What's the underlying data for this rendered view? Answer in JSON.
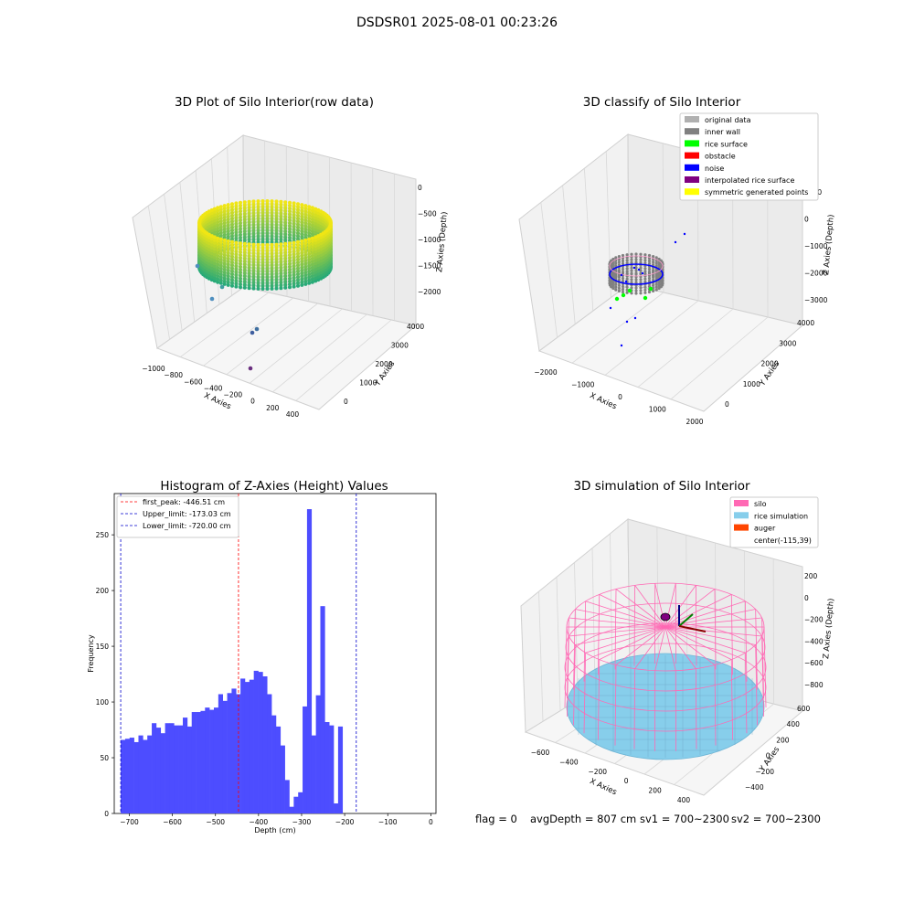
{
  "figure": {
    "suptitle": "DSDSR01 2025-08-01 00:23:26",
    "footer": {
      "flag": "flag = 0",
      "avg_depth": "avgDepth = 807 cm",
      "sv1": "sv1 = 700~2300",
      "sv2": "sv2 = 700~2300"
    }
  },
  "panels": {
    "raw": {
      "title": "3D Plot of Silo Interior(row data)",
      "xlabel": "X Axies",
      "ylabel": "Y Axies",
      "zlabel": "Z Axies (Depth)",
      "x_ticks": [
        "−1000",
        "−800",
        "−600",
        "−400",
        "−200",
        "0",
        "200",
        "400"
      ],
      "y_ticks": [
        "0",
        "1000",
        "2000",
        "3000",
        "4000"
      ],
      "z_ticks": [
        "0",
        "−500",
        "−1000",
        "−1500",
        "−2000"
      ]
    },
    "classify": {
      "title": "3D classify of Silo Interior",
      "xlabel": "X Axies",
      "ylabel": "Y Axies",
      "zlabel": "Z Axies (Depth)",
      "x_ticks": [
        "−2000",
        "−1000",
        "0",
        "1000",
        "2000"
      ],
      "y_ticks": [
        "0",
        "1000",
        "2000",
        "3000",
        "4000"
      ],
      "z_ticks": [
        "1000",
        "0",
        "−1000",
        "−2000",
        "−3000"
      ],
      "legend": [
        {
          "label": "original data",
          "color": "#b0b0b0"
        },
        {
          "label": "inner wall",
          "color": "#808080"
        },
        {
          "label": "rice surface",
          "color": "#00ff00"
        },
        {
          "label": "obstacle",
          "color": "#ff0000"
        },
        {
          "label": "noise",
          "color": "#0000ff"
        },
        {
          "label": "interpolated rice surface",
          "color": "#800080"
        },
        {
          "label": "symmetric generated points",
          "color": "#ffff00"
        }
      ]
    },
    "simulation": {
      "title": "3D simulation of Silo Interior",
      "xlabel": "X Axies",
      "ylabel": "Y Axies",
      "zlabel": "Z Axies (Depth)",
      "x_ticks": [
        "−600",
        "−400",
        "−200",
        "0",
        "200",
        "400"
      ],
      "y_ticks": [
        "−400",
        "−200",
        "0",
        "200",
        "400",
        "600"
      ],
      "z_ticks": [
        "200",
        "0",
        "−200",
        "−400",
        "−600",
        "−800"
      ],
      "legend": [
        {
          "label": "silo",
          "color": "#ff69b4"
        },
        {
          "label": "rice simulation",
          "color": "#87ceeb"
        },
        {
          "label": "auger",
          "color": "#ff4500"
        },
        {
          "label": "center(-115,39)",
          "color": ""
        }
      ]
    }
  },
  "chart_data": [
    {
      "type": "scatter",
      "title": "3D Plot of Silo Interior(row data)",
      "xlabel": "X Axies",
      "ylabel": "Y Axies",
      "zlabel": "Z Axies (Depth)",
      "xlim": [
        -1100,
        500
      ],
      "ylim": [
        -500,
        4500
      ],
      "zlim": [
        -2300,
        100
      ],
      "note_points": "ring of points at depth about -1000 to -2000"
    },
    {
      "type": "scatter",
      "title": "3D classify of Silo Interior",
      "xlabel": "X Axies",
      "ylabel": "Y Axies",
      "zlabel": "Z Axies (Depth)",
      "xlim": [
        -2500,
        2000
      ],
      "ylim": [
        -500,
        4000
      ],
      "zlim": [
        -3300,
        1200
      ]
    },
    {
      "type": "bar",
      "title": "Histogram of Z-Axies (Height) Values",
      "xlabel": "Depth (cm)",
      "ylabel": "Frequency",
      "xlim": [
        -735,
        12
      ],
      "ylim": [
        0,
        287
      ],
      "x_ticks": [
        -700,
        -600,
        -500,
        -400,
        -300,
        -200,
        -100,
        0
      ],
      "y_ticks": [
        0,
        50,
        100,
        150,
        200,
        250
      ],
      "bin_start": -720,
      "bin_width": 10.3,
      "values": [
        66,
        67,
        68,
        64,
        70,
        66,
        70,
        81,
        77,
        72,
        81,
        81,
        79,
        79,
        86,
        78,
        91,
        91,
        92,
        95,
        93,
        95,
        107,
        101,
        108,
        112,
        107,
        121,
        118,
        120,
        128,
        127,
        123,
        107,
        88,
        78,
        61,
        30,
        6,
        15,
        19,
        96,
        273,
        70,
        106,
        186,
        82,
        79,
        9,
        78
      ],
      "color": "#4d4dff",
      "lines": [
        {
          "label": "first_peak: -446.51 cm",
          "x": -446.51,
          "color": "#ff0000"
        },
        {
          "label": "Upper_limit: -173.03 cm",
          "x": -173.03,
          "color": "#0000cc"
        },
        {
          "label": "Lower_limit: -720.00 cm",
          "x": -720.0,
          "color": "#0000cc"
        }
      ],
      "legend_position": "upper-left"
    },
    {
      "type": "scatter",
      "title": "3D simulation of Silo Interior",
      "xlabel": "X Axies",
      "ylabel": "Y Axies",
      "zlabel": "Z Axies (Depth)",
      "xlim": [
        -700,
        450
      ],
      "ylim": [
        -500,
        650
      ],
      "zlim": [
        -900,
        300
      ]
    }
  ]
}
